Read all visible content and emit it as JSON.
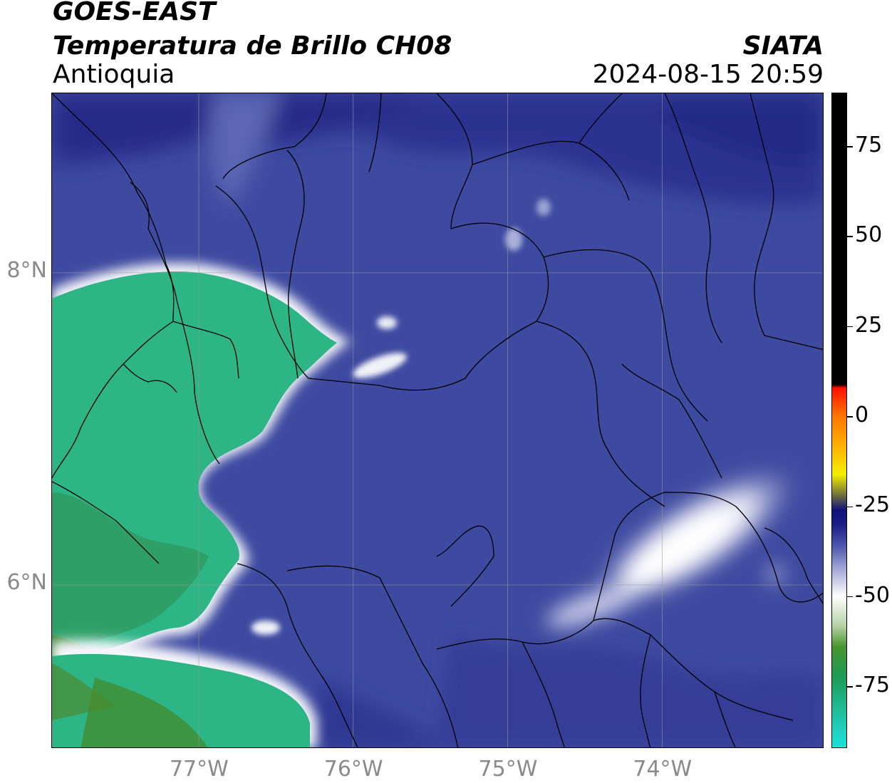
{
  "header": {
    "satellite": "GOES-EAST",
    "product": "Temperatura de Brillo CH08",
    "region": "Antioquia",
    "agency": "SIATA",
    "datetime": "2024-08-15 20:59"
  },
  "map": {
    "lon_range": [
      -77.95,
      -72.95
    ],
    "lat_range": [
      4.95,
      9.15
    ],
    "lon_ticks": [
      {
        "value": -77,
        "label": "77°W"
      },
      {
        "value": -76,
        "label": "76°W"
      },
      {
        "value": -75,
        "label": "75°W"
      },
      {
        "value": -74,
        "label": "74°W"
      }
    ],
    "lat_ticks": [
      {
        "value": 8,
        "label": "8°N"
      },
      {
        "value": 6,
        "label": "6°N"
      }
    ],
    "gridlines": true,
    "background_color": "#3e4aa0",
    "colors": {
      "cold_blue": "#3e4aa0",
      "deep_blue": "#2a2f8c",
      "cloud_white": "#f2f3f8",
      "green": "#2db585",
      "dark_green": "#3a8a3a"
    }
  },
  "colorbar": {
    "range": [
      -92,
      90
    ],
    "stops": [
      {
        "value": -92,
        "color": "#ffffff"
      },
      {
        "value": -91.9,
        "color": "#16e0d6"
      },
      {
        "value": -88,
        "color": "#1ed4c4"
      },
      {
        "value": -80,
        "color": "#1fb78f"
      },
      {
        "value": -72,
        "color": "#1e9a54"
      },
      {
        "value": -64,
        "color": "#4a9430"
      },
      {
        "value": -58,
        "color": "#b8d4a8"
      },
      {
        "value": -50,
        "color": "#ffffff"
      },
      {
        "value": -42,
        "color": "#9ea4d6"
      },
      {
        "value": -36,
        "color": "#4e58ac"
      },
      {
        "value": -30,
        "color": "#1a1d85"
      },
      {
        "value": -26,
        "color": "#10127a"
      },
      {
        "value": -22,
        "color": "#6b6b40"
      },
      {
        "value": -16,
        "color": "#f3f000"
      },
      {
        "value": -8,
        "color": "#ffb000"
      },
      {
        "value": 0,
        "color": "#ff7800"
      },
      {
        "value": 8,
        "color": "#ff1000"
      },
      {
        "value": 9,
        "color": "#000000"
      },
      {
        "value": 90,
        "color": "#000000"
      }
    ],
    "ticks": [
      {
        "value": 75,
        "label": "75"
      },
      {
        "value": 50,
        "label": "50"
      },
      {
        "value": 25,
        "label": "25"
      },
      {
        "value": 0,
        "label": "0"
      },
      {
        "value": -25,
        "label": "-25"
      },
      {
        "value": -50,
        "label": "-50"
      },
      {
        "value": -75,
        "label": "-75"
      }
    ]
  }
}
